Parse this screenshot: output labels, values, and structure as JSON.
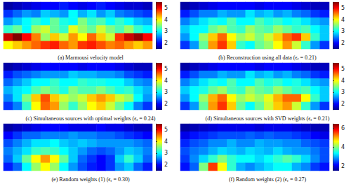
{
  "chart_data": [
    {
      "type": "heatmap",
      "title": "(a) Marmousi velocity model",
      "tick_labels": false,
      "colorbar_range": [
        1.5,
        5.5
      ],
      "colorbar_ticks": [
        2,
        3,
        4,
        5
      ],
      "values": [
        [
          1.6,
          1.7,
          1.8,
          1.9,
          2.0,
          2.0,
          2.1,
          2.0,
          1.9,
          2.0,
          2.1,
          2.0,
          1.9,
          1.8,
          1.8,
          1.7
        ],
        [
          2.2,
          2.4,
          2.6,
          2.5,
          2.8,
          2.7,
          2.6,
          3.0,
          2.7,
          2.9,
          2.6,
          2.8,
          2.5,
          2.4,
          2.3,
          2.2
        ],
        [
          2.6,
          2.8,
          3.0,
          3.2,
          3.0,
          3.4,
          3.1,
          3.0,
          3.5,
          3.2,
          3.3,
          3.0,
          3.2,
          3.0,
          2.8,
          2.7
        ],
        [
          3.2,
          3.4,
          3.0,
          3.6,
          3.8,
          3.4,
          3.2,
          3.9,
          3.6,
          3.4,
          3.8,
          3.5,
          3.3,
          3.6,
          3.2,
          3.0
        ],
        [
          5.2,
          5.5,
          5.0,
          4.5,
          3.6,
          4.2,
          3.8,
          4.4,
          4.0,
          4.6,
          4.2,
          3.8,
          4.8,
          5.2,
          5.4,
          5.0
        ],
        [
          4.0,
          4.2,
          4.4,
          4.6,
          4.8,
          4.9,
          4.6,
          4.4,
          4.8,
          4.9,
          4.7,
          4.5,
          4.6,
          4.4,
          4.2,
          4.4
        ]
      ]
    },
    {
      "type": "heatmap",
      "title": "(b) Reconstruction using all data (ϵᵣ = 0.21)",
      "tick_labels": false,
      "colorbar_range": [
        1.5,
        5.5
      ],
      "colorbar_ticks": [
        2,
        3,
        4,
        5
      ],
      "values": [
        [
          1.6,
          1.7,
          1.8,
          1.9,
          2.0,
          2.0,
          2.0,
          2.0,
          1.9,
          2.0,
          2.0,
          2.0,
          1.9,
          1.8,
          1.7,
          1.7
        ],
        [
          2.1,
          2.3,
          2.5,
          2.5,
          2.7,
          2.6,
          2.6,
          2.9,
          2.7,
          2.8,
          2.6,
          2.7,
          2.5,
          2.4,
          2.2,
          2.1
        ],
        [
          2.5,
          2.7,
          2.9,
          3.1,
          3.0,
          3.3,
          3.0,
          3.0,
          3.3,
          3.1,
          3.2,
          3.0,
          3.1,
          2.9,
          2.7,
          2.6
        ],
        [
          2.8,
          3.0,
          3.0,
          3.4,
          3.6,
          3.3,
          3.2,
          3.6,
          3.4,
          3.3,
          3.6,
          3.4,
          3.2,
          3.3,
          3.0,
          2.8
        ],
        [
          2.6,
          3.0,
          3.6,
          4.2,
          4.6,
          4.0,
          3.6,
          3.8,
          3.5,
          3.8,
          4.2,
          4.6,
          4.8,
          4.2,
          3.2,
          2.8
        ],
        [
          2.2,
          2.6,
          3.4,
          4.4,
          4.8,
          4.2,
          3.2,
          3.0,
          3.4,
          3.6,
          4.0,
          4.4,
          3.8,
          3.2,
          2.6,
          2.2
        ]
      ]
    },
    {
      "type": "heatmap",
      "title": "(c) Simultaneous sources with optimal weights (ϵᵣ = 0.24)",
      "tick_labels": false,
      "colorbar_range": [
        1.5,
        5.5
      ],
      "colorbar_ticks": [
        2,
        3,
        4,
        5
      ],
      "values": [
        [
          1.6,
          1.7,
          1.8,
          1.9,
          2.0,
          2.0,
          2.0,
          2.0,
          1.9,
          2.0,
          2.0,
          2.0,
          1.9,
          1.8,
          1.7,
          1.7
        ],
        [
          2.1,
          2.3,
          2.4,
          2.5,
          2.6,
          2.6,
          2.6,
          2.8,
          2.7,
          2.7,
          2.6,
          2.6,
          2.5,
          2.3,
          2.2,
          2.1
        ],
        [
          2.4,
          2.6,
          2.8,
          3.0,
          3.0,
          3.2,
          3.0,
          3.0,
          3.2,
          3.1,
          3.1,
          3.0,
          3.0,
          2.8,
          2.6,
          2.5
        ],
        [
          2.7,
          2.9,
          3.0,
          3.3,
          3.5,
          3.3,
          3.1,
          3.5,
          3.3,
          3.3,
          3.5,
          3.3,
          3.1,
          3.2,
          2.9,
          2.7
        ],
        [
          2.5,
          2.9,
          3.5,
          4.2,
          4.7,
          4.2,
          3.8,
          3.6,
          3.8,
          4.2,
          4.4,
          4.2,
          3.8,
          3.6,
          3.0,
          2.6
        ],
        [
          2.2,
          2.5,
          3.2,
          4.0,
          4.6,
          4.4,
          3.6,
          3.2,
          3.6,
          4.0,
          4.2,
          3.8,
          3.4,
          3.0,
          2.5,
          2.2
        ]
      ]
    },
    {
      "type": "heatmap",
      "title": "(d) Simultaneous sources with SVD weights (ϵᵣ = 0.21)",
      "tick_labels": false,
      "colorbar_range": [
        1.5,
        5.5
      ],
      "colorbar_ticks": [
        2,
        3,
        4,
        5
      ],
      "values": [
        [
          1.6,
          1.7,
          1.8,
          1.9,
          2.0,
          2.0,
          2.0,
          2.0,
          1.9,
          2.0,
          2.0,
          2.0,
          1.9,
          1.8,
          1.7,
          1.7
        ],
        [
          2.1,
          2.3,
          2.5,
          2.5,
          2.7,
          2.6,
          2.6,
          2.9,
          2.7,
          2.8,
          2.6,
          2.7,
          2.5,
          2.4,
          2.2,
          2.1
        ],
        [
          2.5,
          2.7,
          2.9,
          3.1,
          3.0,
          3.3,
          3.0,
          3.0,
          3.3,
          3.1,
          3.2,
          3.0,
          3.1,
          2.9,
          2.7,
          2.6
        ],
        [
          2.8,
          3.0,
          3.1,
          3.4,
          3.6,
          3.3,
          3.2,
          3.6,
          3.4,
          3.3,
          3.6,
          3.4,
          3.2,
          3.3,
          3.0,
          2.8
        ],
        [
          2.6,
          3.0,
          3.6,
          4.3,
          4.6,
          4.0,
          3.6,
          3.8,
          3.6,
          3.9,
          4.3,
          4.6,
          4.6,
          4.0,
          3.2,
          2.8
        ],
        [
          2.2,
          2.6,
          3.4,
          4.4,
          4.8,
          4.2,
          3.4,
          3.0,
          3.4,
          3.8,
          4.2,
          4.4,
          3.8,
          3.2,
          2.6,
          2.2
        ]
      ]
    },
    {
      "type": "heatmap",
      "title": "(e) Random weights (1) (ϵᵣ = 0.30)",
      "tick_labels": false,
      "colorbar_range": [
        1.5,
        5.5
      ],
      "colorbar_ticks": [
        2,
        3,
        4,
        5
      ],
      "values": [
        [
          1.6,
          1.7,
          1.8,
          1.9,
          2.0,
          2.0,
          2.0,
          1.9,
          1.9,
          1.9,
          2.0,
          1.9,
          1.9,
          1.8,
          1.7,
          1.7
        ],
        [
          2.0,
          2.2,
          2.4,
          2.4,
          2.5,
          2.5,
          2.5,
          2.6,
          2.5,
          2.5,
          2.4,
          2.4,
          2.3,
          2.2,
          2.1,
          2.0
        ],
        [
          2.3,
          2.5,
          2.7,
          2.9,
          2.9,
          3.0,
          2.8,
          2.7,
          2.8,
          2.7,
          2.6,
          2.6,
          2.6,
          2.6,
          2.5,
          2.4
        ],
        [
          2.5,
          2.7,
          2.9,
          3.2,
          3.3,
          3.2,
          3.0,
          2.8,
          2.6,
          2.4,
          2.3,
          2.4,
          2.6,
          2.8,
          2.7,
          2.5
        ],
        [
          2.4,
          2.8,
          3.4,
          4.0,
          4.4,
          4.0,
          3.4,
          2.8,
          2.4,
          2.2,
          2.0,
          2.2,
          2.8,
          3.2,
          2.8,
          2.4
        ],
        [
          2.1,
          2.4,
          3.0,
          3.6,
          4.0,
          3.6,
          3.0,
          2.6,
          2.3,
          2.1,
          2.0,
          2.2,
          2.6,
          2.8,
          2.4,
          2.1
        ]
      ]
    },
    {
      "type": "heatmap",
      "title": "(f) Random weights (2) (ϵᵣ = 0.27)",
      "tick_labels": false,
      "colorbar_range": [
        1.5,
        6.5
      ],
      "colorbar_ticks": [
        2,
        4,
        6
      ],
      "values": [
        [
          1.6,
          1.7,
          1.8,
          1.9,
          2.0,
          2.0,
          2.0,
          2.0,
          1.9,
          2.0,
          2.0,
          2.0,
          1.9,
          1.8,
          1.7,
          1.7
        ],
        [
          2.0,
          2.2,
          2.3,
          2.4,
          2.5,
          2.5,
          2.5,
          2.6,
          2.5,
          2.6,
          2.5,
          2.5,
          2.4,
          2.3,
          2.1,
          2.0
        ],
        [
          2.3,
          2.5,
          2.6,
          2.8,
          2.8,
          3.0,
          2.8,
          2.8,
          3.0,
          2.9,
          2.9,
          2.8,
          2.8,
          2.6,
          2.5,
          2.4
        ],
        [
          2.5,
          2.7,
          2.8,
          3.0,
          3.2,
          3.1,
          3.0,
          3.2,
          3.1,
          3.0,
          3.2,
          3.0,
          2.9,
          2.9,
          2.7,
          2.5
        ],
        [
          2.4,
          2.8,
          3.2,
          3.6,
          4.0,
          3.6,
          3.4,
          3.4,
          3.2,
          3.4,
          3.6,
          3.8,
          3.6,
          3.2,
          2.8,
          2.5
        ],
        [
          2.2,
          2.6,
          4.0,
          5.6,
          4.6,
          3.6,
          3.0,
          2.8,
          3.0,
          3.2,
          3.4,
          3.4,
          3.0,
          2.8,
          2.4,
          2.2
        ]
      ]
    }
  ]
}
